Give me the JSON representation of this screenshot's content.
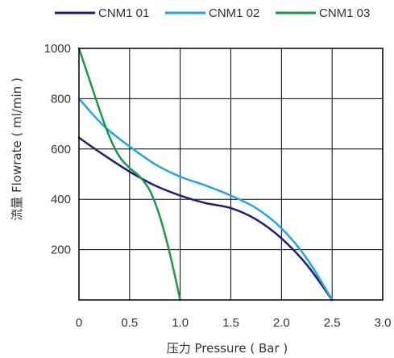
{
  "chart_data": {
    "type": "line",
    "xlabel": "压力 Pressure ( Bar )",
    "ylabel": "流量 Flowrate ( ml/min )",
    "xlim": [
      0,
      3.0
    ],
    "ylim": [
      0,
      1000
    ],
    "x_ticks": [
      "0",
      "0.5",
      "1.0",
      "1.5",
      "2.0",
      "2.5",
      "3.0"
    ],
    "y_ticks": [
      "200",
      "400",
      "600",
      "800",
      "1000"
    ],
    "grid": true,
    "legend": "top",
    "series": [
      {
        "name": "CNM1 01",
        "color": "#1f1f7a",
        "points": [
          [
            0,
            645
          ],
          [
            0.25,
            575
          ],
          [
            0.5,
            510
          ],
          [
            0.75,
            455
          ],
          [
            1.0,
            415
          ],
          [
            1.25,
            385
          ],
          [
            1.5,
            365
          ],
          [
            1.75,
            320
          ],
          [
            2.0,
            245
          ],
          [
            2.25,
            140
          ],
          [
            2.5,
            0
          ]
        ]
      },
      {
        "name": "CNM1 02",
        "color": "#1ea7e8",
        "points": [
          [
            0,
            800
          ],
          [
            0.25,
            690
          ],
          [
            0.5,
            610
          ],
          [
            0.75,
            540
          ],
          [
            1.0,
            490
          ],
          [
            1.25,
            455
          ],
          [
            1.5,
            415
          ],
          [
            1.75,
            365
          ],
          [
            2.0,
            285
          ],
          [
            2.25,
            165
          ],
          [
            2.5,
            0
          ]
        ]
      },
      {
        "name": "CNM1 03",
        "color": "#1a9a4a",
        "points": [
          [
            0,
            1000
          ],
          [
            0.1,
            880
          ],
          [
            0.2,
            760
          ],
          [
            0.3,
            650
          ],
          [
            0.4,
            570
          ],
          [
            0.5,
            525
          ],
          [
            0.6,
            490
          ],
          [
            0.7,
            435
          ],
          [
            0.8,
            330
          ],
          [
            0.9,
            180
          ],
          [
            1.0,
            0
          ]
        ]
      }
    ]
  }
}
